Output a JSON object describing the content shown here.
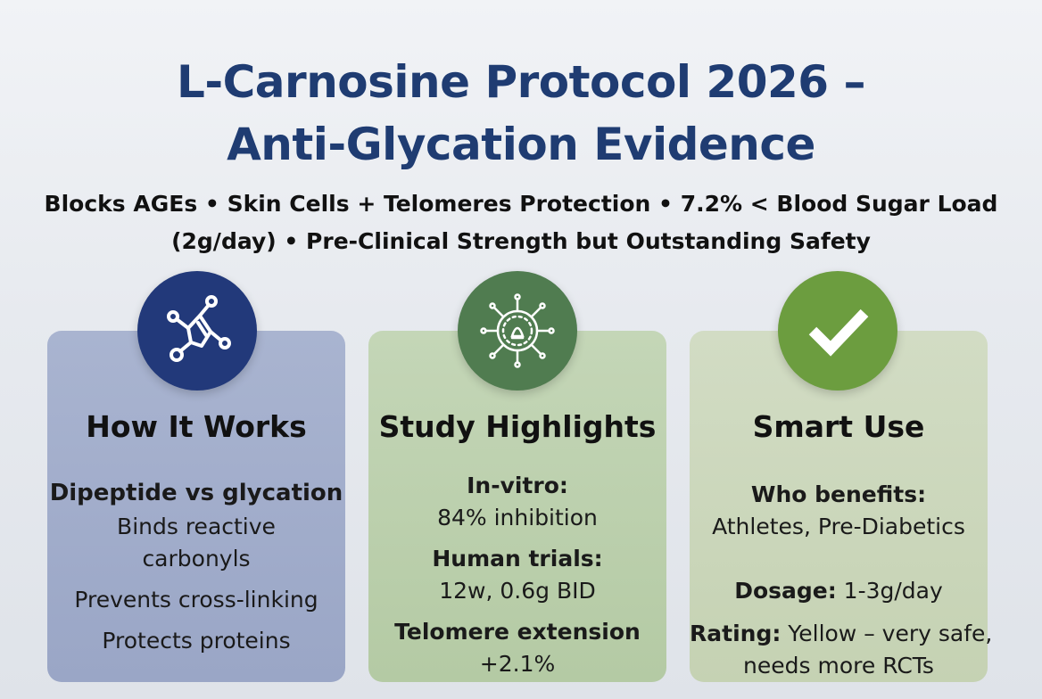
{
  "header": {
    "title_line1": "L-Carnosine Protocol 2026 –",
    "title_line2": "Anti-Glycation Evidence",
    "subtitle_line1": "Blocks AGEs • Skin Cells + Telomeres Protection • 7.2% < Blood Sugar Load",
    "subtitle_line2": "(2g/day) • Pre-Clinical Strength but Outstanding Safety"
  },
  "icons": {
    "card1": "molecule-icon",
    "card2": "microbe-cell-icon",
    "card3": "checkmark-icon"
  },
  "colors": {
    "title": "#1f3c72",
    "badge_blue": "#22397a",
    "badge_green_dark": "#507c50",
    "badge_green_light": "#6c9d3f"
  },
  "cards": [
    {
      "heading": "How It Works",
      "subheading": "Dipeptide vs glycation",
      "line1": "Binds reactive",
      "line2": "carbonyls",
      "line3": "Prevents cross-linking",
      "line4": "Protects proteins"
    },
    {
      "heading": "Study Highlights",
      "label1": "In-vitro:",
      "value1": "84% inhibition",
      "label2": "Human trials:",
      "value2": "12w, 0.6g BID",
      "label3": "Telomere extension",
      "value3": "+2.1%"
    },
    {
      "heading": "Smart Use",
      "label1": "Who benefits:",
      "value1": "Athletes, Pre-Diabetics",
      "label2": "Dosage:",
      "value2": " 1-3g/day",
      "label3": "Rating:",
      "value3": " Yellow – very safe,",
      "value3b": "needs more RCTs"
    }
  ]
}
